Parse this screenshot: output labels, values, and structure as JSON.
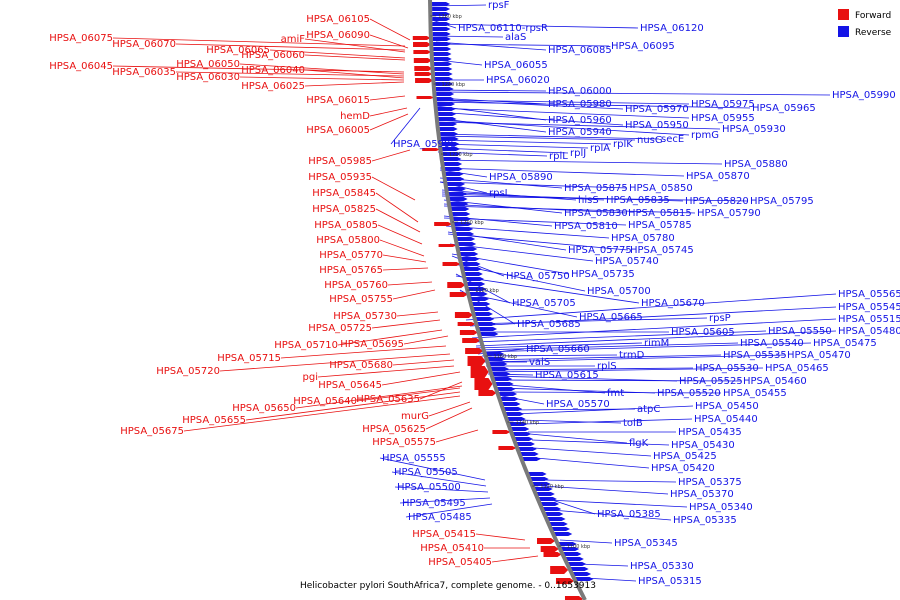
{
  "title": "Helicobacter pylori SouthAfrica7, complete genome. - 0..1653913",
  "colors": {
    "forward": "#e81010",
    "reverse": "#1414e6",
    "backbone": "#7a7a7a"
  },
  "legend": [
    {
      "label": "Forward",
      "color": "#e81010"
    },
    {
      "label": "Reverse",
      "color": "#1414e6"
    }
  ],
  "ticks": [
    "1260 kbp",
    "1240 kbp",
    "1220 kbp",
    "1200 kbp",
    "1180 kbp",
    "1160 kbp",
    "1140 kbp",
    "1120 kbp",
    "1100 kbp"
  ],
  "forward_genes": [
    "HPSA_06105",
    "HPSA_06075",
    "HPSA_06070",
    "amiF",
    "HPSA_06090",
    "HPSA_06065",
    "HPSA_06060",
    "HPSA_06045",
    "HPSA_06050",
    "HPSA_06035",
    "HPSA_06040",
    "HPSA_06030",
    "HPSA_06025",
    "HPSA_06015",
    "hemD",
    "HPSA_06005",
    "HPSA_05985",
    "HPSA_05935",
    "HPSA_05845",
    "HPSA_05825",
    "HPSA_05805",
    "HPSA_05800",
    "HPSA_05770",
    "HPSA_05765",
    "HPSA_05760",
    "HPSA_05755",
    "HPSA_05730",
    "HPSA_05725",
    "HPSA_05710",
    "HPSA_05695",
    "HPSA_05715",
    "HPSA_05720",
    "HPSA_05680",
    "pgi",
    "HPSA_05645",
    "HPSA_05635",
    "HPSA_05650",
    "HPSA_05640",
    "HPSA_05655",
    "HPSA_05675",
    "murG",
    "HPSA_05625",
    "HPSA_05575",
    "HPSA_05415",
    "HPSA_05410",
    "HPSA_05405"
  ],
  "reverse_genes": [
    "rpsF",
    "HPSA_06110-rpsR",
    "HPSA_06120",
    "alaS",
    "HPSA_06085",
    "HPSA_06095",
    "HPSA_06055",
    "HPSA_06020",
    "HPSA_06000",
    "HPSA_05990",
    "HPSA_05980",
    "HPSA_05970",
    "HPSA_05975",
    "HPSA_05965",
    "HPSA_05960",
    "HPSA_05955",
    "HPSA_05950",
    "HPSA_05940",
    "rpmG",
    "HPSA_05930",
    "secE",
    "nusG",
    "rplK",
    "rplA",
    "rplJ",
    "rplL",
    "HPSA_05995",
    "HPSA_05880",
    "HPSA_05890",
    "HPSA_05870",
    "rpsL",
    "HPSA_05875",
    "HPSA_05850",
    "hisS",
    "HPSA_05835",
    "HPSA_05820",
    "HPSA_05795",
    "HPSA_05830",
    "HPSA_05815",
    "HPSA_05790",
    "HPSA_05810",
    "HPSA_05785",
    "HPSA_05780",
    "HPSA_05775",
    "HPSA_05745",
    "HPSA_05740",
    "HPSA_05750",
    "HPSA_05735",
    "HPSA_05700",
    "HPSA_05705",
    "HPSA_05670",
    "HPSA_05685",
    "HPSA_05665",
    "HPSA_05565",
    "HPSA_05545",
    "rpsP",
    "HPSA_05605",
    "HPSA_05515",
    "HPSA_05550",
    "HPSA_05480",
    "rimM",
    "HPSA_05540",
    "HPSA_05475",
    "HPSA_05660",
    "trmD",
    "HPSA_05535",
    "HPSA_05470",
    "valS",
    "rplS",
    "HPSA_05530",
    "HPSA_05465",
    "HPSA_05615",
    "HPSA_05525",
    "HPSA_05460",
    "fmt",
    "HPSA_05520",
    "HPSA_05455",
    "HPSA_05570",
    "atpC",
    "HPSA_05450",
    "tolB",
    "HPSA_05440",
    "HPSA_05435",
    "flgK",
    "HPSA_05430",
    "HPSA_05425",
    "HPSA_05420",
    "HPSA_05555",
    "HPSA_05505",
    "HPSA_05500",
    "HPSA_05495",
    "HPSA_05485",
    "HPSA_05375",
    "HPSA_05370",
    "HPSA_05340",
    "HPSA_05385",
    "HPSA_05335",
    "HPSA_05345",
    "HPSA_05330",
    "HPSA_05315"
  ]
}
